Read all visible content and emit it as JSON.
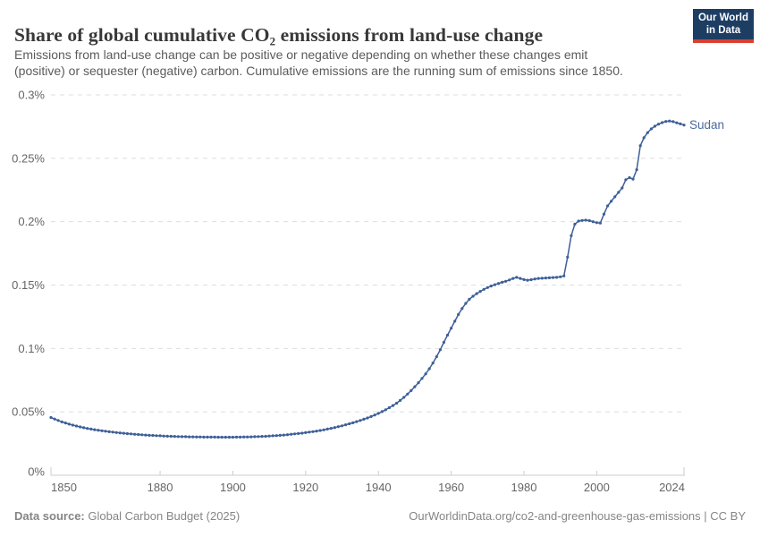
{
  "header": {
    "title": "Share of global cumulative CO₂ emissions from land-use change",
    "subtitle_line1": "Emissions from land-use change can be positive or negative depending on whether these changes emit",
    "subtitle_line2": "(positive) or sequester (negative) carbon. Cumulative emissions are the running sum of emissions since 1850.",
    "logo": {
      "line1": "Our World",
      "line2": "in Data"
    }
  },
  "chart_data": {
    "type": "line",
    "title": "Share of global cumulative CO₂ emissions from land-use change",
    "xlabel": "",
    "ylabel": "",
    "unit": "%",
    "xlim": [
      1850,
      2024
    ],
    "ylim": [
      0,
      0.3
    ],
    "grid": "horizontal-dashed",
    "legend_position": "end-of-line-label",
    "x_ticks": [
      1850,
      1880,
      1900,
      1920,
      1940,
      1960,
      1980,
      2000,
      2024
    ],
    "x_tick_labels": [
      "1850",
      "1880",
      "1900",
      "1920",
      "1940",
      "1960",
      "1980",
      "2000",
      "2024"
    ],
    "y_ticks": [
      0,
      0.05,
      0.1,
      0.15,
      0.2,
      0.25,
      0.3
    ],
    "y_tick_labels": [
      "0%",
      "0.05%",
      "0.1%",
      "0.15%",
      "0.2%",
      "0.25%",
      "0.3%"
    ],
    "series": [
      {
        "name": "Sudan",
        "color": "#3e5f98",
        "label_color": "#4c6a9c",
        "x_start": 1850,
        "x_step": 1,
        "values": [
          0.0455,
          0.0443,
          0.0432,
          0.0421,
          0.0412,
          0.0403,
          0.0395,
          0.0388,
          0.0381,
          0.0375,
          0.0369,
          0.0364,
          0.0359,
          0.0355,
          0.0351,
          0.0347,
          0.0343,
          0.034,
          0.0337,
          0.0334,
          0.0331,
          0.0328,
          0.0326,
          0.0323,
          0.0321,
          0.0319,
          0.0317,
          0.0315,
          0.0314,
          0.0312,
          0.0311,
          0.0309,
          0.0308,
          0.0307,
          0.0306,
          0.0305,
          0.0304,
          0.0304,
          0.0303,
          0.0303,
          0.0302,
          0.0302,
          0.0301,
          0.0301,
          0.0301,
          0.0301,
          0.03,
          0.03,
          0.03,
          0.03,
          0.03,
          0.0301,
          0.0301,
          0.0302,
          0.0302,
          0.0303,
          0.0304,
          0.0305,
          0.0306,
          0.0307,
          0.0309,
          0.0311,
          0.0313,
          0.0315,
          0.0317,
          0.032,
          0.0323,
          0.0326,
          0.0329,
          0.0332,
          0.0336,
          0.034,
          0.0344,
          0.0348,
          0.0353,
          0.0358,
          0.0364,
          0.037,
          0.0376,
          0.0383,
          0.039,
          0.0398,
          0.0406,
          0.0414,
          0.0423,
          0.0432,
          0.0442,
          0.0452,
          0.0463,
          0.0475,
          0.0488,
          0.0502,
          0.0517,
          0.0533,
          0.055,
          0.0568,
          0.059,
          0.0614,
          0.064,
          0.0668,
          0.0698,
          0.073,
          0.0764,
          0.08,
          0.084,
          0.0885,
          0.0935,
          0.099,
          0.1048,
          0.1105,
          0.116,
          0.1215,
          0.1268,
          0.1315,
          0.1355,
          0.1388,
          0.1412,
          0.1432,
          0.145,
          0.1466,
          0.148,
          0.1492,
          0.1503,
          0.1513,
          0.1522,
          0.153,
          0.154,
          0.1552,
          0.1561,
          0.1552,
          0.1543,
          0.1538,
          0.1542,
          0.1548,
          0.1552,
          0.1554,
          0.1556,
          0.1557,
          0.1559,
          0.1561,
          0.1565,
          0.1572,
          0.172,
          0.189,
          0.198,
          0.2005,
          0.201,
          0.2012,
          0.2008,
          0.2,
          0.1992,
          0.1989,
          0.206,
          0.2125,
          0.2161,
          0.2196,
          0.2231,
          0.2266,
          0.2331,
          0.2347,
          0.2336,
          0.241,
          0.26,
          0.2662,
          0.2702,
          0.2732,
          0.2753,
          0.2769,
          0.2781,
          0.279,
          0.2794,
          0.2789,
          0.278,
          0.2771,
          0.2762
        ]
      }
    ]
  },
  "footer": {
    "source_label": "Data source:",
    "source_value": "Global Carbon Budget (2025)",
    "right_note": "OurWorldinData.org/co2-and-greenhouse-gas-emissions | CC BY"
  },
  "colors": {
    "line": "#3e5f98",
    "series_label": "#4c6a9c",
    "grid": "#dedede",
    "axis": "#cccccc",
    "tick_label": "#666666",
    "title_text": "#383838",
    "subtitle_text": "#5b5b5b",
    "footer_text": "#858585",
    "logo_bg": "#1d3d63",
    "logo_accent": "#dc3f2e"
  }
}
